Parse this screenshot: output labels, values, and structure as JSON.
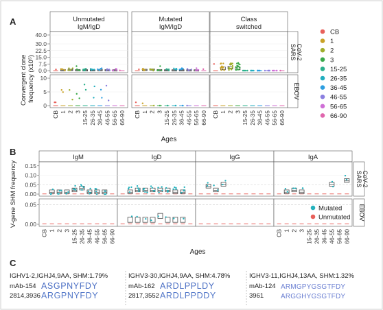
{
  "panels": {
    "a": "A",
    "b": "B",
    "c": "C"
  },
  "colors": {
    "CB": "#e8605a",
    "1": "#c9a227",
    "2": "#9fae2c",
    "3": "#3aa94a",
    "15-25": "#2bb08c",
    "26-35": "#22aebf",
    "36-45": "#2d9ee0",
    "46-55": "#8b7fe0",
    "56-65": "#cf6fd6",
    "66-90": "#e066ad",
    "mutated": "#25b2bd",
    "unmutated": "#e8605a",
    "seq_a": "#4b6fc4",
    "seq_b": "#6a7fd2",
    "seq_c": "#4ab0c8"
  },
  "figure_a": {
    "ylabel_line1": "Convergent clone",
    "ylabel_line2": "frequency (x10⁵)",
    "xlabel": "Ages",
    "facets": [
      "Unmutated IgM/IgD",
      "Mutated IgM/IgD",
      "Class switched"
    ],
    "facet_lines": [
      [
        "Unmutated",
        "IgM/IgD"
      ],
      [
        "Mutated",
        "IgM/IgD"
      ],
      [
        "Class",
        "switched"
      ]
    ],
    "rows": [
      [
        "SARS",
        "CoV-2"
      ],
      [
        "EBOV"
      ]
    ],
    "yticks_sars": [
      "40.0",
      "30.0",
      "22.5",
      "15.0",
      "7.5",
      "0.0"
    ],
    "yticks_ebov": [
      "10",
      "5",
      "0"
    ],
    "age_groups": [
      "CB",
      "1",
      "2",
      "3",
      "15-25",
      "26-35",
      "36-45",
      "46-55",
      "56-65",
      "66-90"
    ],
    "chart_data": {
      "type": "box",
      "categories": [
        "CB",
        "1",
        "2",
        "3",
        "15-25",
        "26-35",
        "36-45",
        "46-55",
        "56-65",
        "66-90"
      ],
      "series": [
        {
          "name": "SARS-CoV-2 Unmutated IgM/IgD",
          "medians": [
            0,
            0.5,
            0.8,
            0.5,
            0.3,
            0.3,
            0.6,
            0.4,
            0.2,
            0
          ]
        },
        {
          "name": "SARS-CoV-2 Mutated IgM/IgD",
          "medians": [
            0,
            0.8,
            1.2,
            0.5,
            0.3,
            0.2,
            0.3,
            0.2,
            0.2,
            0
          ]
        },
        {
          "name": "SARS-CoV-2 Class switched",
          "medians": [
            0,
            1.5,
            2.5,
            1.5,
            0,
            0,
            0,
            0,
            0,
            0
          ]
        },
        {
          "name": "EBOV Unmutated IgM/IgD",
          "medians": [
            0,
            0,
            0,
            0,
            0,
            0,
            0,
            0,
            0,
            0
          ]
        },
        {
          "name": "EBOV Mutated IgM/IgD",
          "medians": [
            0,
            0,
            0,
            0,
            0,
            0,
            0,
            0,
            0,
            0
          ]
        },
        {
          "name": "EBOV Class switched",
          "medians": [
            0,
            0,
            0,
            0,
            0,
            0,
            0,
            0,
            0,
            0
          ]
        }
      ]
    }
  },
  "legend_a": [
    "CB",
    "1",
    "2",
    "3",
    "15-25",
    "26-35",
    "36-45",
    "46-55",
    "56-65",
    "66-90"
  ],
  "figure_b": {
    "ylabel": "V-gene SHM frequency",
    "xlabel": "Ages",
    "facets": [
      "IgM",
      "IgD",
      "IgG",
      "IgA"
    ],
    "rows": [
      [
        "SARS",
        "CoV-2"
      ],
      [
        "EBOV"
      ]
    ],
    "yticks_sars": [
      "0.15",
      "0.10",
      "0.05",
      "0.00"
    ],
    "yticks_ebov": [
      "0.05",
      "0.00"
    ],
    "age_groups": [
      "CB",
      "1",
      "2",
      "3",
      "15-25",
      "26-35",
      "36-45",
      "46-55",
      "56-65",
      "66-90"
    ],
    "legend": [
      "Mutated",
      "Unmutated"
    ],
    "chart_data": {
      "type": "box",
      "categories": [
        "CB",
        "1",
        "2",
        "3",
        "15-25",
        "26-35",
        "36-45",
        "46-55",
        "56-65",
        "66-90"
      ],
      "series": [
        {
          "name": "SARS-CoV-2 IgM",
          "medians": [
            0.0,
            0.01,
            0.01,
            0.01,
            0.02,
            0.03,
            0.01,
            0.01,
            0.01,
            0.0
          ]
        },
        {
          "name": "SARS-CoV-2 IgD",
          "medians": [
            0.0,
            0.01,
            0.02,
            0.02,
            0.02,
            0.02,
            0.02,
            0.01,
            0.01,
            0.0
          ]
        },
        {
          "name": "SARS-CoV-2 IgG",
          "medians": [
            0.0,
            0.04,
            0.02,
            0.05,
            0,
            0,
            0,
            0,
            0,
            0
          ]
        },
        {
          "name": "SARS-CoV-2 IgA",
          "medians": [
            0.0,
            0.01,
            0.02,
            0.01,
            0,
            0,
            0,
            0.05,
            0,
            0.07
          ]
        },
        {
          "name": "EBOV IgM",
          "medians": [
            0.0,
            0.0,
            0.0,
            0.0,
            0.0,
            0.0,
            0.0,
            0.0,
            0.0,
            0.0
          ]
        },
        {
          "name": "EBOV IgD",
          "medians": [
            0.0,
            0.01,
            0.01,
            0.01,
            0.01,
            0.02,
            0.01,
            0.01,
            0.01,
            0.0
          ]
        }
      ]
    }
  },
  "figure_c": [
    {
      "header": "IGHV1-2,IGHJ4,9AA, SHM:1.79%",
      "rows": [
        {
          "label": "mAb-154",
          "seq": "ASGPNYFDY",
          "color": "#4b6fc4"
        },
        {
          "label": "2814,3936",
          "seq": "ARGPNYFDY",
          "color": "#5277c8"
        }
      ]
    },
    {
      "header": "IGHV3-30,IGHJ4,9AA, SHM:4.78%",
      "rows": [
        {
          "label": "mAb-162",
          "seq": "ARDLPPLDY",
          "color": "#4b6fc4"
        },
        {
          "label": "2817,3552",
          "seq": "ARDLPPDDY",
          "color": "#5277c8"
        }
      ]
    },
    {
      "header": "IGHV3-11,IGHJ4,13AA, SHM:1.32%",
      "rows": [
        {
          "label": "mAb-124",
          "seq": "ARMGPYGSGTFDY",
          "color": "#6a7fd2"
        },
        {
          "label": "3961",
          "seq": "ARGGHYGSGTFDY",
          "color": "#6a7fd2"
        }
      ]
    }
  ]
}
